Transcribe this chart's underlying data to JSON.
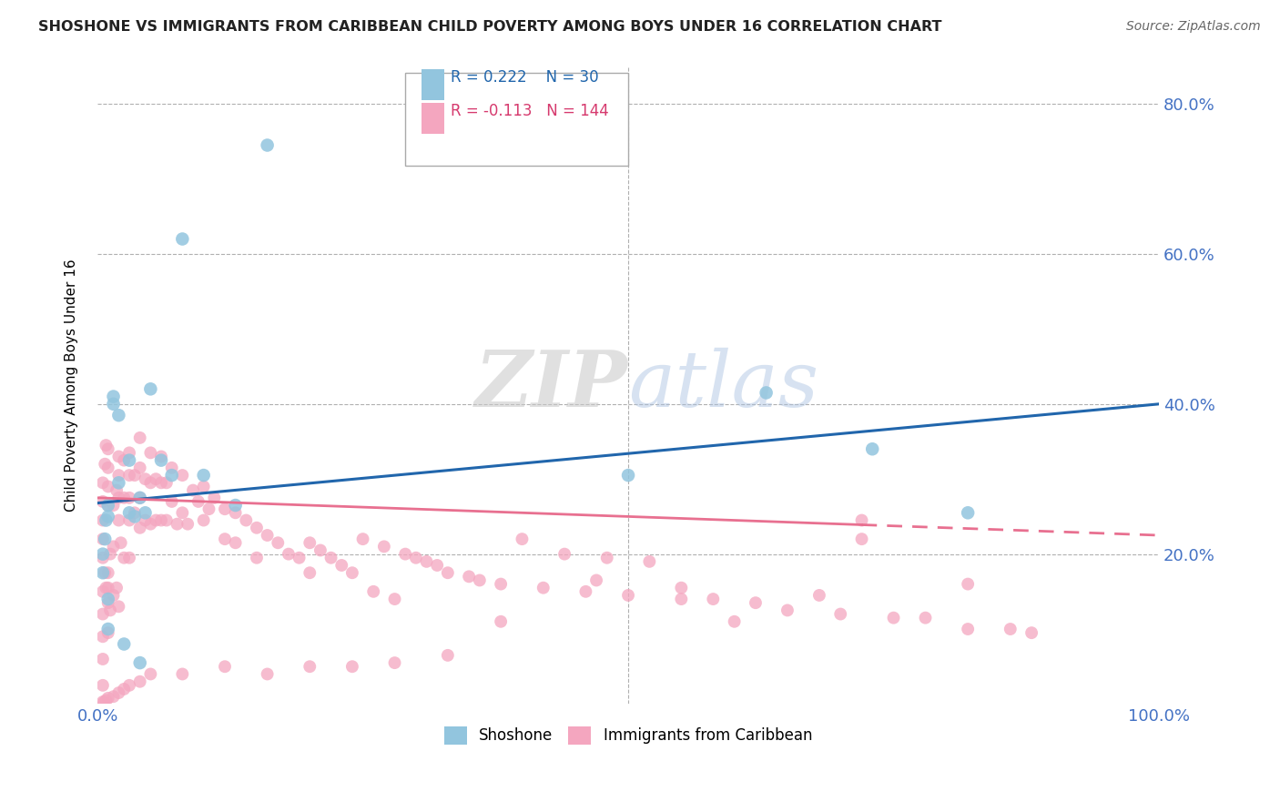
{
  "title": "SHOSHONE VS IMMIGRANTS FROM CARIBBEAN CHILD POVERTY AMONG BOYS UNDER 16 CORRELATION CHART",
  "source": "Source: ZipAtlas.com",
  "ylabel": "Child Poverty Among Boys Under 16",
  "xlim": [
    0.0,
    1.0
  ],
  "ylim": [
    0.0,
    0.85
  ],
  "yticks": [
    0.0,
    0.2,
    0.4,
    0.6,
    0.8
  ],
  "xticks": [
    0.0,
    0.1,
    0.2,
    0.3,
    0.4,
    0.5,
    0.6,
    0.7,
    0.8,
    0.9,
    1.0
  ],
  "legend_entries": [
    "Shoshone",
    "Immigrants from Caribbean"
  ],
  "shoshone_color": "#92c5de",
  "caribbean_color": "#f4a6bf",
  "shoshone_line_color": "#2166ac",
  "caribbean_line_color": "#d6604d",
  "caribbean_line_solid_color": "#e87090",
  "shoshone_R": 0.222,
  "shoshone_N": 30,
  "caribbean_R": -0.113,
  "caribbean_N": 144,
  "watermark_zip": "ZIP",
  "watermark_atlas": "atlas",
  "background_color": "#ffffff",
  "grid_color": "#b0b0b0",
  "shoshone_x": [
    0.005,
    0.005,
    0.007,
    0.008,
    0.01,
    0.01,
    0.01,
    0.01,
    0.015,
    0.015,
    0.02,
    0.02,
    0.025,
    0.03,
    0.03,
    0.035,
    0.04,
    0.04,
    0.045,
    0.05,
    0.06,
    0.07,
    0.08,
    0.1,
    0.13,
    0.16,
    0.5,
    0.63,
    0.73,
    0.82
  ],
  "shoshone_y": [
    0.175,
    0.2,
    0.22,
    0.245,
    0.25,
    0.265,
    0.14,
    0.1,
    0.4,
    0.41,
    0.385,
    0.295,
    0.08,
    0.255,
    0.325,
    0.25,
    0.275,
    0.055,
    0.255,
    0.42,
    0.325,
    0.305,
    0.62,
    0.305,
    0.265,
    0.745,
    0.305,
    0.415,
    0.34,
    0.255
  ],
  "caribbean_x": [
    0.005,
    0.005,
    0.005,
    0.005,
    0.005,
    0.007,
    0.007,
    0.008,
    0.008,
    0.01,
    0.01,
    0.01,
    0.01,
    0.01,
    0.01,
    0.01,
    0.01,
    0.012,
    0.012,
    0.015,
    0.015,
    0.015,
    0.018,
    0.018,
    0.02,
    0.02,
    0.02,
    0.02,
    0.02,
    0.022,
    0.025,
    0.025,
    0.025,
    0.03,
    0.03,
    0.03,
    0.03,
    0.03,
    0.035,
    0.035,
    0.04,
    0.04,
    0.04,
    0.04,
    0.045,
    0.045,
    0.05,
    0.05,
    0.05,
    0.055,
    0.055,
    0.06,
    0.06,
    0.06,
    0.065,
    0.065,
    0.07,
    0.07,
    0.075,
    0.08,
    0.08,
    0.085,
    0.09,
    0.095,
    0.1,
    0.1,
    0.105,
    0.11,
    0.12,
    0.12,
    0.13,
    0.13,
    0.14,
    0.15,
    0.15,
    0.16,
    0.17,
    0.18,
    0.19,
    0.2,
    0.2,
    0.21,
    0.22,
    0.23,
    0.24,
    0.25,
    0.26,
    0.27,
    0.28,
    0.29,
    0.3,
    0.31,
    0.32,
    0.33,
    0.35,
    0.36,
    0.38,
    0.4,
    0.42,
    0.44,
    0.46,
    0.48,
    0.5,
    0.52,
    0.55,
    0.58,
    0.62,
    0.65,
    0.7,
    0.72,
    0.75,
    0.78,
    0.82,
    0.86,
    0.88,
    0.82,
    0.68,
    0.72,
    0.55,
    0.6,
    0.47,
    0.38,
    0.33,
    0.28,
    0.24,
    0.2,
    0.16,
    0.12,
    0.08,
    0.05,
    0.04,
    0.03,
    0.025,
    0.02,
    0.015,
    0.01,
    0.008,
    0.006,
    0.005,
    0.005,
    0.005,
    0.005,
    0.005,
    0.005
  ],
  "caribbean_y": [
    0.295,
    0.27,
    0.245,
    0.22,
    0.195,
    0.32,
    0.175,
    0.345,
    0.155,
    0.34,
    0.315,
    0.29,
    0.265,
    0.175,
    0.155,
    0.135,
    0.095,
    0.2,
    0.125,
    0.265,
    0.21,
    0.145,
    0.285,
    0.155,
    0.33,
    0.305,
    0.275,
    0.245,
    0.13,
    0.215,
    0.325,
    0.275,
    0.195,
    0.335,
    0.305,
    0.275,
    0.245,
    0.195,
    0.305,
    0.255,
    0.355,
    0.315,
    0.275,
    0.235,
    0.3,
    0.245,
    0.335,
    0.295,
    0.24,
    0.3,
    0.245,
    0.33,
    0.295,
    0.245,
    0.295,
    0.245,
    0.315,
    0.27,
    0.24,
    0.305,
    0.255,
    0.24,
    0.285,
    0.27,
    0.29,
    0.245,
    0.26,
    0.275,
    0.26,
    0.22,
    0.255,
    0.215,
    0.245,
    0.235,
    0.195,
    0.225,
    0.215,
    0.2,
    0.195,
    0.215,
    0.175,
    0.205,
    0.195,
    0.185,
    0.175,
    0.22,
    0.15,
    0.21,
    0.14,
    0.2,
    0.195,
    0.19,
    0.185,
    0.175,
    0.17,
    0.165,
    0.16,
    0.22,
    0.155,
    0.2,
    0.15,
    0.195,
    0.145,
    0.19,
    0.14,
    0.14,
    0.135,
    0.125,
    0.12,
    0.245,
    0.115,
    0.115,
    0.1,
    0.1,
    0.095,
    0.16,
    0.145,
    0.22,
    0.155,
    0.11,
    0.165,
    0.11,
    0.065,
    0.055,
    0.05,
    0.05,
    0.04,
    0.05,
    0.04,
    0.04,
    0.03,
    0.025,
    0.02,
    0.015,
    0.01,
    0.008,
    0.005,
    0.002,
    0.003,
    0.025,
    0.06,
    0.09,
    0.12,
    0.15
  ]
}
